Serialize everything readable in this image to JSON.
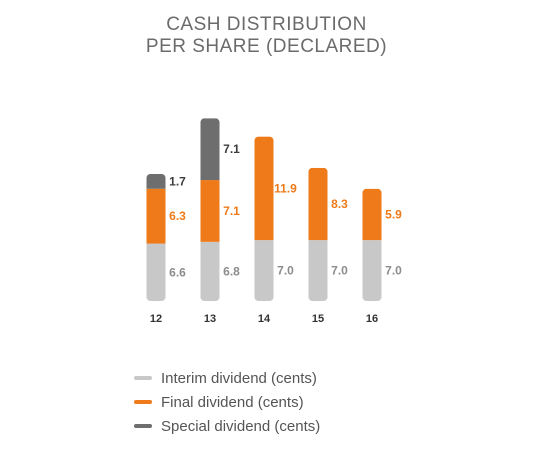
{
  "title_line1": "CASH DISTRIBUTION",
  "title_line2": "PER SHARE (DECLARED)",
  "colors": {
    "interim": "#c8c8c8",
    "final": "#ee7a1a",
    "special": "#6e6e6e",
    "interim_label": "#8c8c8c",
    "final_label": "#ee7a1a",
    "special_label": "#3c3c3c"
  },
  "legend": [
    {
      "label": "Interim dividend (cents)",
      "color_key": "interim"
    },
    {
      "label": "Final dividend (cents)",
      "color_key": "final"
    },
    {
      "label": "Special dividend (cents)",
      "color_key": "special"
    }
  ],
  "chart_data": {
    "type": "bar",
    "stacked": true,
    "categories": [
      "12",
      "13",
      "14",
      "15",
      "16"
    ],
    "series": [
      {
        "name": "Interim dividend (cents)",
        "key": "interim",
        "values": [
          6.6,
          6.8,
          7.0,
          7.0,
          7.0
        ],
        "labels": [
          "6.6",
          "6.8",
          "7.0",
          "7.0",
          "7.0"
        ]
      },
      {
        "name": "Final dividend (cents)",
        "key": "final",
        "values": [
          6.3,
          7.1,
          11.9,
          8.3,
          5.9
        ],
        "labels": [
          "6.3",
          "7.1",
          "11.9",
          "8.3",
          "5.9"
        ]
      },
      {
        "name": "Special dividend (cents)",
        "key": "special",
        "values": [
          1.7,
          7.1,
          0,
          0,
          0
        ],
        "labels": [
          "1.7",
          "7.1",
          "",
          "",
          ""
        ]
      }
    ],
    "title": "CASH DISTRIBUTION PER SHARE (DECLARED)",
    "grid": false,
    "legend_position": "bottom"
  }
}
